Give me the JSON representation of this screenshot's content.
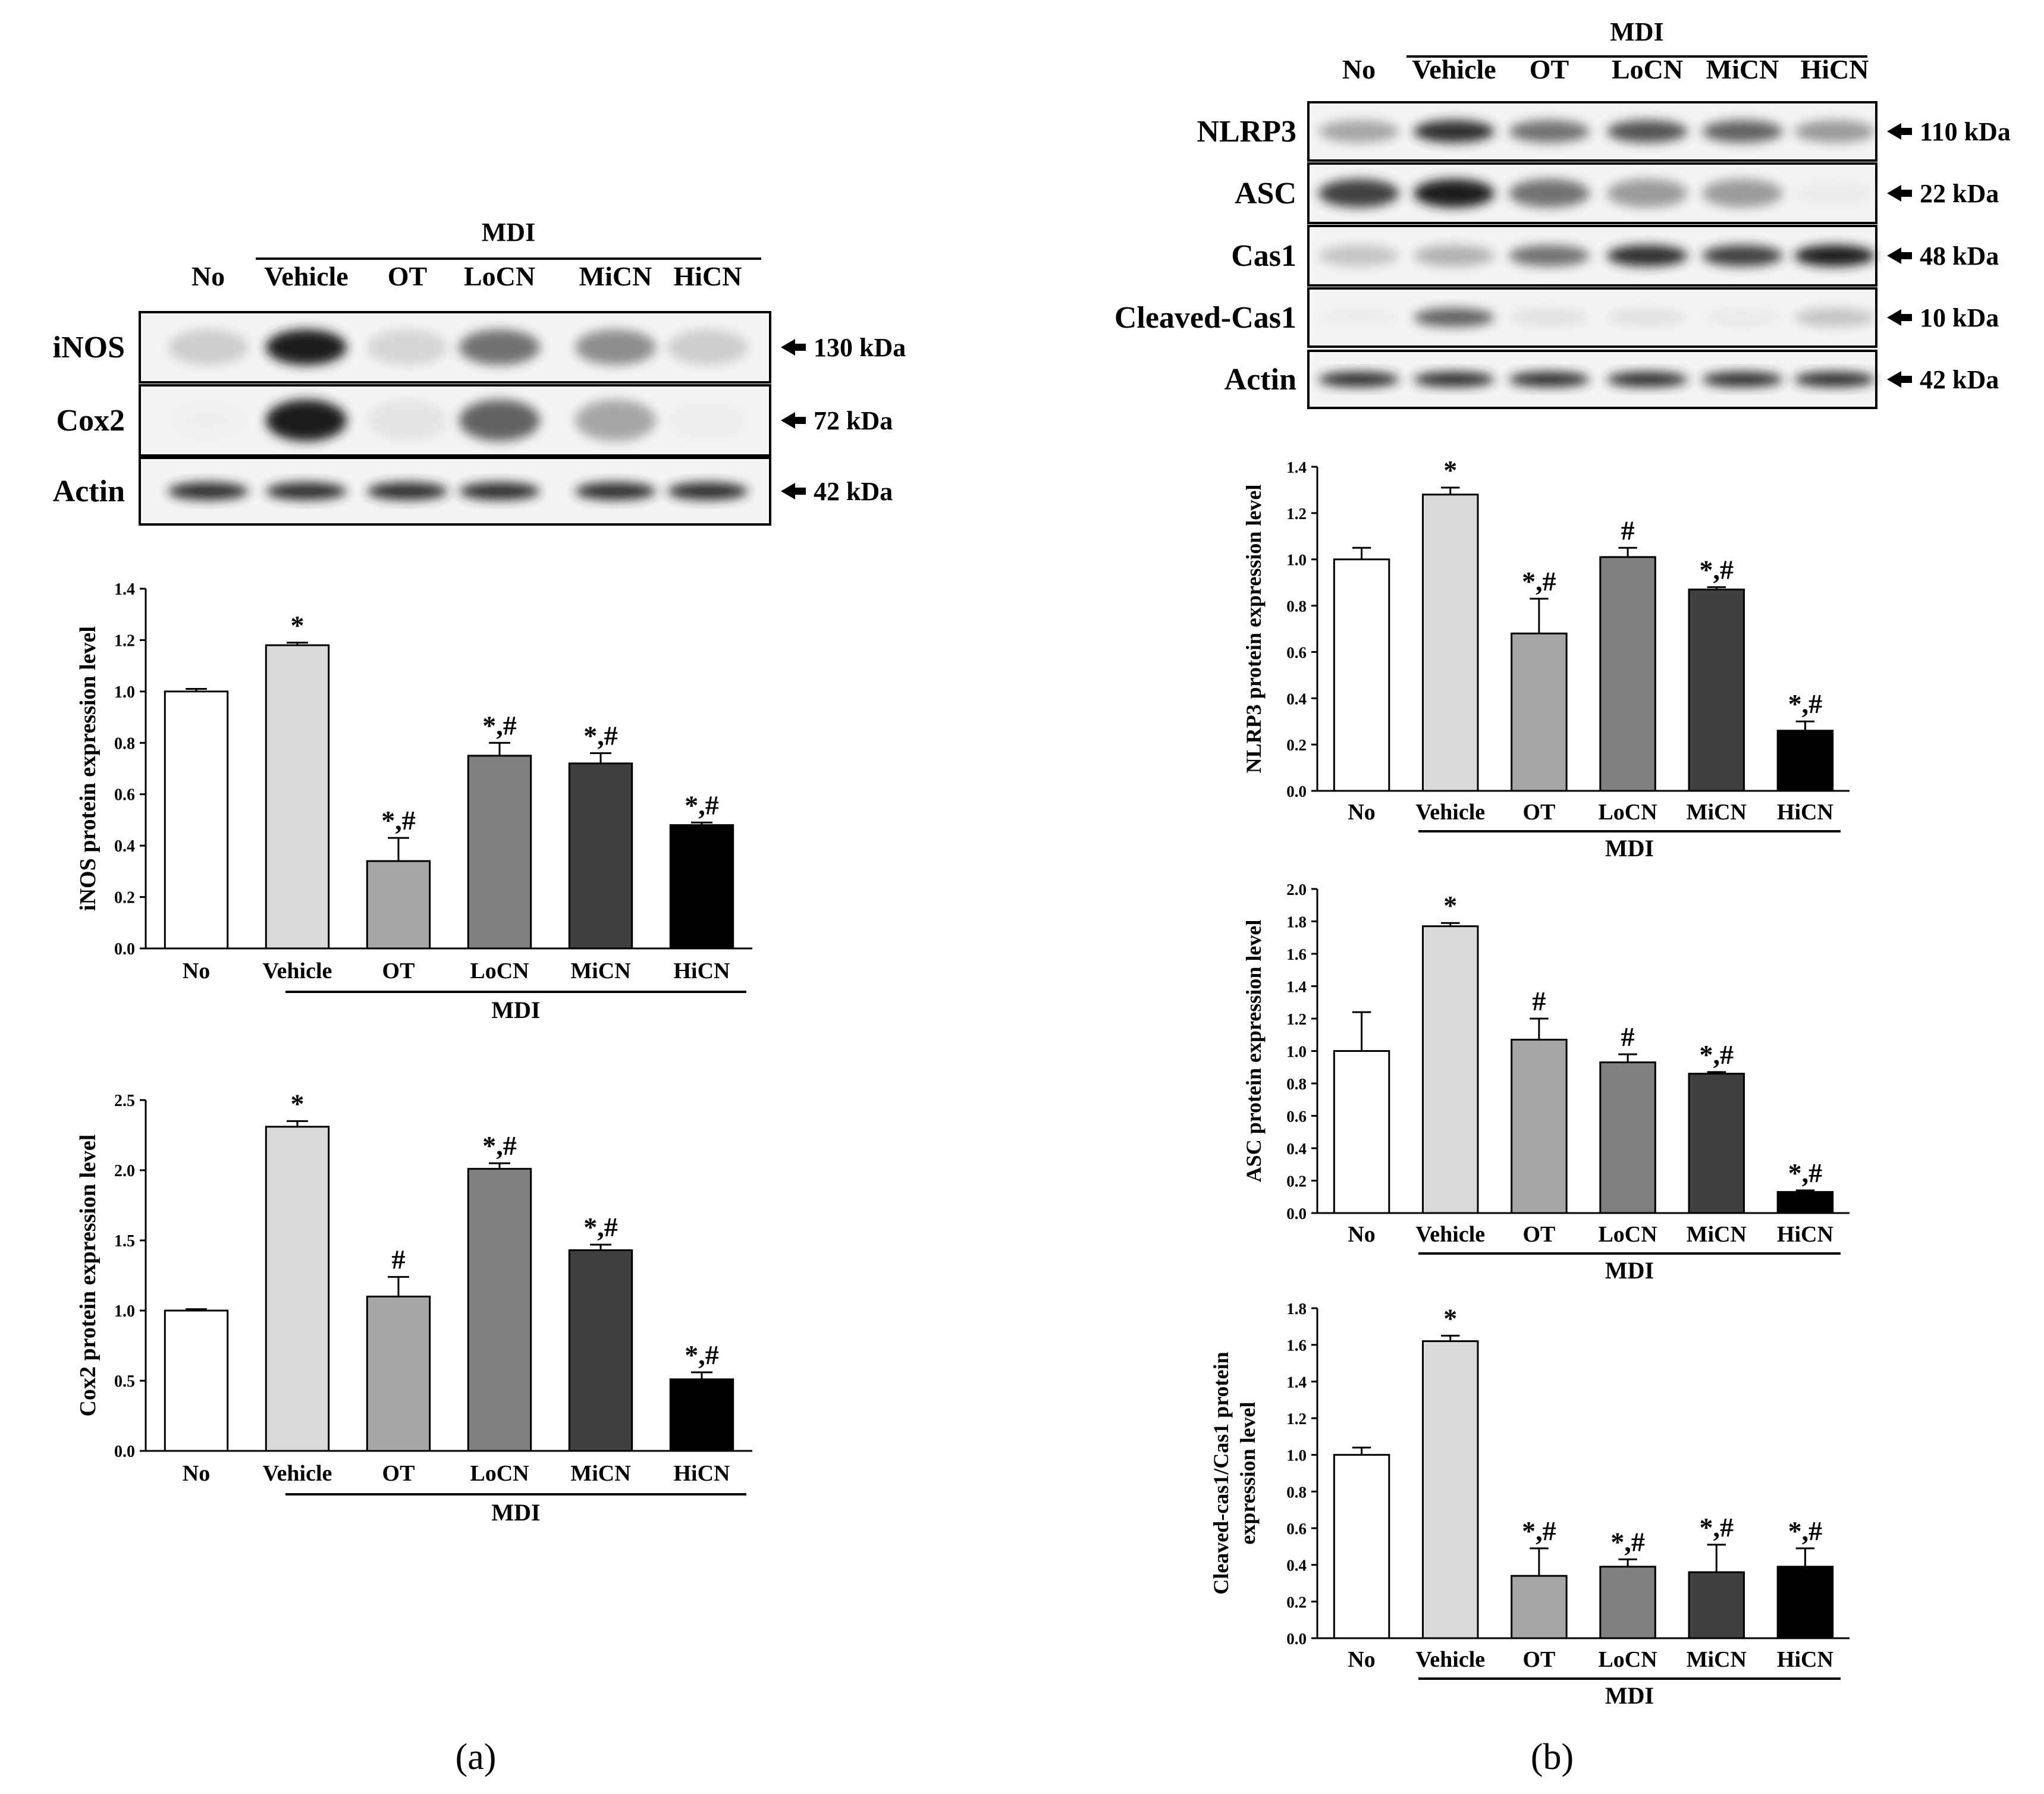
{
  "panels": [
    {
      "id": "a",
      "label": "(a)",
      "blot": {
        "group_label": "MDI",
        "lanes": [
          "No",
          "Vehicle",
          "OT",
          "LoCN",
          "MiCN",
          "HiCN"
        ],
        "rows": [
          {
            "name": "iNOS",
            "size": "130 kDa",
            "intensity": [
              0.35,
              1.0,
              0.3,
              0.75,
              0.65,
              0.35
            ]
          },
          {
            "name": "Cox2",
            "size": "72 kDa",
            "intensity": [
              0.05,
              1.0,
              0.18,
              0.8,
              0.55,
              0.08
            ]
          },
          {
            "name": "Actin",
            "size": "42 kDa",
            "intensity": [
              0.95,
              0.95,
              0.95,
              0.95,
              0.95,
              0.95
            ]
          }
        ]
      }
    },
    {
      "id": "b",
      "label": "(b)",
      "blot": {
        "group_label": "MDI",
        "lanes": [
          "No",
          "Vehicle",
          "OT",
          "LoCN",
          "MiCN",
          "HiCN"
        ],
        "rows": [
          {
            "name": "NLRP3",
            "size": "110 kDa",
            "intensity": [
              0.55,
              0.95,
              0.75,
              0.85,
              0.8,
              0.6
            ]
          },
          {
            "name": "ASC",
            "size": "22 kDa",
            "intensity": [
              0.9,
              1.0,
              0.75,
              0.6,
              0.6,
              0.1
            ]
          },
          {
            "name": "Cas1",
            "size": "48 kDa",
            "intensity": [
              0.4,
              0.5,
              0.75,
              0.95,
              0.9,
              1.0
            ]
          },
          {
            "name": "Cleaved-Cas1",
            "size": "10 kDa",
            "intensity": [
              0.1,
              0.8,
              0.2,
              0.2,
              0.12,
              0.4
            ]
          },
          {
            "name": "Actin",
            "size": "42 kDa",
            "intensity": [
              0.95,
              0.95,
              0.95,
              0.95,
              0.95,
              0.95
            ]
          }
        ]
      }
    }
  ],
  "chart_data": [
    {
      "id": "inos",
      "panel": "a",
      "type": "bar",
      "ylabel": "iNOS protein expression level",
      "categories": [
        "No",
        "Vehicle",
        "OT",
        "LoCN",
        "MiCN",
        "HiCN"
      ],
      "group_label": "MDI",
      "values": [
        1.0,
        1.18,
        0.34,
        0.75,
        0.72,
        0.48
      ],
      "errors": [
        0.01,
        0.01,
        0.09,
        0.05,
        0.04,
        0.01
      ],
      "annotations": [
        "",
        "*",
        "*,#",
        "*,#",
        "*,#",
        "*,#"
      ],
      "ylim": [
        0,
        1.4
      ],
      "yticks": [
        "0.0",
        "0.2",
        "0.4",
        "0.6",
        "0.8",
        "1.0",
        "1.2",
        "1.4"
      ],
      "colors": [
        "#ffffff",
        "#d9d9d9",
        "#a6a6a6",
        "#808080",
        "#404040",
        "#000000"
      ]
    },
    {
      "id": "cox2",
      "panel": "a",
      "type": "bar",
      "ylabel": "Cox2 protein expression level",
      "categories": [
        "No",
        "Vehicle",
        "OT",
        "LoCN",
        "MiCN",
        "HiCN"
      ],
      "group_label": "MDI",
      "values": [
        1.0,
        2.31,
        1.1,
        2.01,
        1.43,
        0.51
      ],
      "errors": [
        0.01,
        0.04,
        0.14,
        0.04,
        0.04,
        0.05
      ],
      "annotations": [
        "",
        "*",
        "#",
        "*,#",
        "*,#",
        "*,#"
      ],
      "ylim": [
        0,
        2.5
      ],
      "yticks": [
        "0.0",
        "0.5",
        "1.0",
        "1.5",
        "2.0",
        "2.5"
      ],
      "colors": [
        "#ffffff",
        "#d9d9d9",
        "#a6a6a6",
        "#808080",
        "#404040",
        "#000000"
      ]
    },
    {
      "id": "nlrp3",
      "panel": "b",
      "type": "bar",
      "ylabel": "NLRP3 protein expression level",
      "categories": [
        "No",
        "Vehicle",
        "OT",
        "LoCN",
        "MiCN",
        "HiCN"
      ],
      "group_label": "MDI",
      "values": [
        1.0,
        1.28,
        0.68,
        1.01,
        0.87,
        0.26
      ],
      "errors": [
        0.05,
        0.03,
        0.15,
        0.04,
        0.01,
        0.04
      ],
      "annotations": [
        "",
        "*",
        "*,#",
        "#",
        "*,#",
        "*,#"
      ],
      "ylim": [
        0,
        1.4
      ],
      "yticks": [
        "0.0",
        "0.2",
        "0.4",
        "0.6",
        "0.8",
        "1.0",
        "1.2",
        "1.4"
      ],
      "colors": [
        "#ffffff",
        "#d9d9d9",
        "#a6a6a6",
        "#808080",
        "#404040",
        "#000000"
      ]
    },
    {
      "id": "asc",
      "panel": "b",
      "type": "bar",
      "ylabel": "ASC protein expression level",
      "categories": [
        "No",
        "Vehicle",
        "OT",
        "LoCN",
        "MiCN",
        "HiCN"
      ],
      "group_label": "MDI",
      "values": [
        1.0,
        1.77,
        1.07,
        0.93,
        0.86,
        0.13
      ],
      "errors": [
        0.24,
        0.02,
        0.13,
        0.05,
        0.01,
        0.01
      ],
      "annotations": [
        "",
        "*",
        "#",
        "#",
        "*,#",
        "*,#"
      ],
      "ylim": [
        0,
        2.0
      ],
      "yticks": [
        "0.0",
        "0.2",
        "0.4",
        "0.6",
        "0.8",
        "1.0",
        "1.2",
        "1.4",
        "1.6",
        "1.8",
        "2.0"
      ],
      "colors": [
        "#ffffff",
        "#d9d9d9",
        "#a6a6a6",
        "#808080",
        "#404040",
        "#000000"
      ]
    },
    {
      "id": "cleaved",
      "panel": "b",
      "type": "bar",
      "ylabel": [
        "Cleaved-cas1/Cas1 protein",
        "expression level"
      ],
      "categories": [
        "No",
        "Vehicle",
        "OT",
        "LoCN",
        "MiCN",
        "HiCN"
      ],
      "group_label": "MDI",
      "values": [
        1.0,
        1.62,
        0.34,
        0.39,
        0.36,
        0.39
      ],
      "errors": [
        0.04,
        0.03,
        0.15,
        0.04,
        0.15,
        0.1
      ],
      "annotations": [
        "",
        "*",
        "*,#",
        "*,#",
        "*,#",
        "*,#"
      ],
      "ylim": [
        0,
        1.8
      ],
      "yticks": [
        "0.0",
        "0.2",
        "0.4",
        "0.6",
        "0.8",
        "1.0",
        "1.2",
        "1.4",
        "1.6",
        "1.8"
      ],
      "colors": [
        "#ffffff",
        "#d9d9d9",
        "#a6a6a6",
        "#808080",
        "#404040",
        "#000000"
      ]
    }
  ]
}
